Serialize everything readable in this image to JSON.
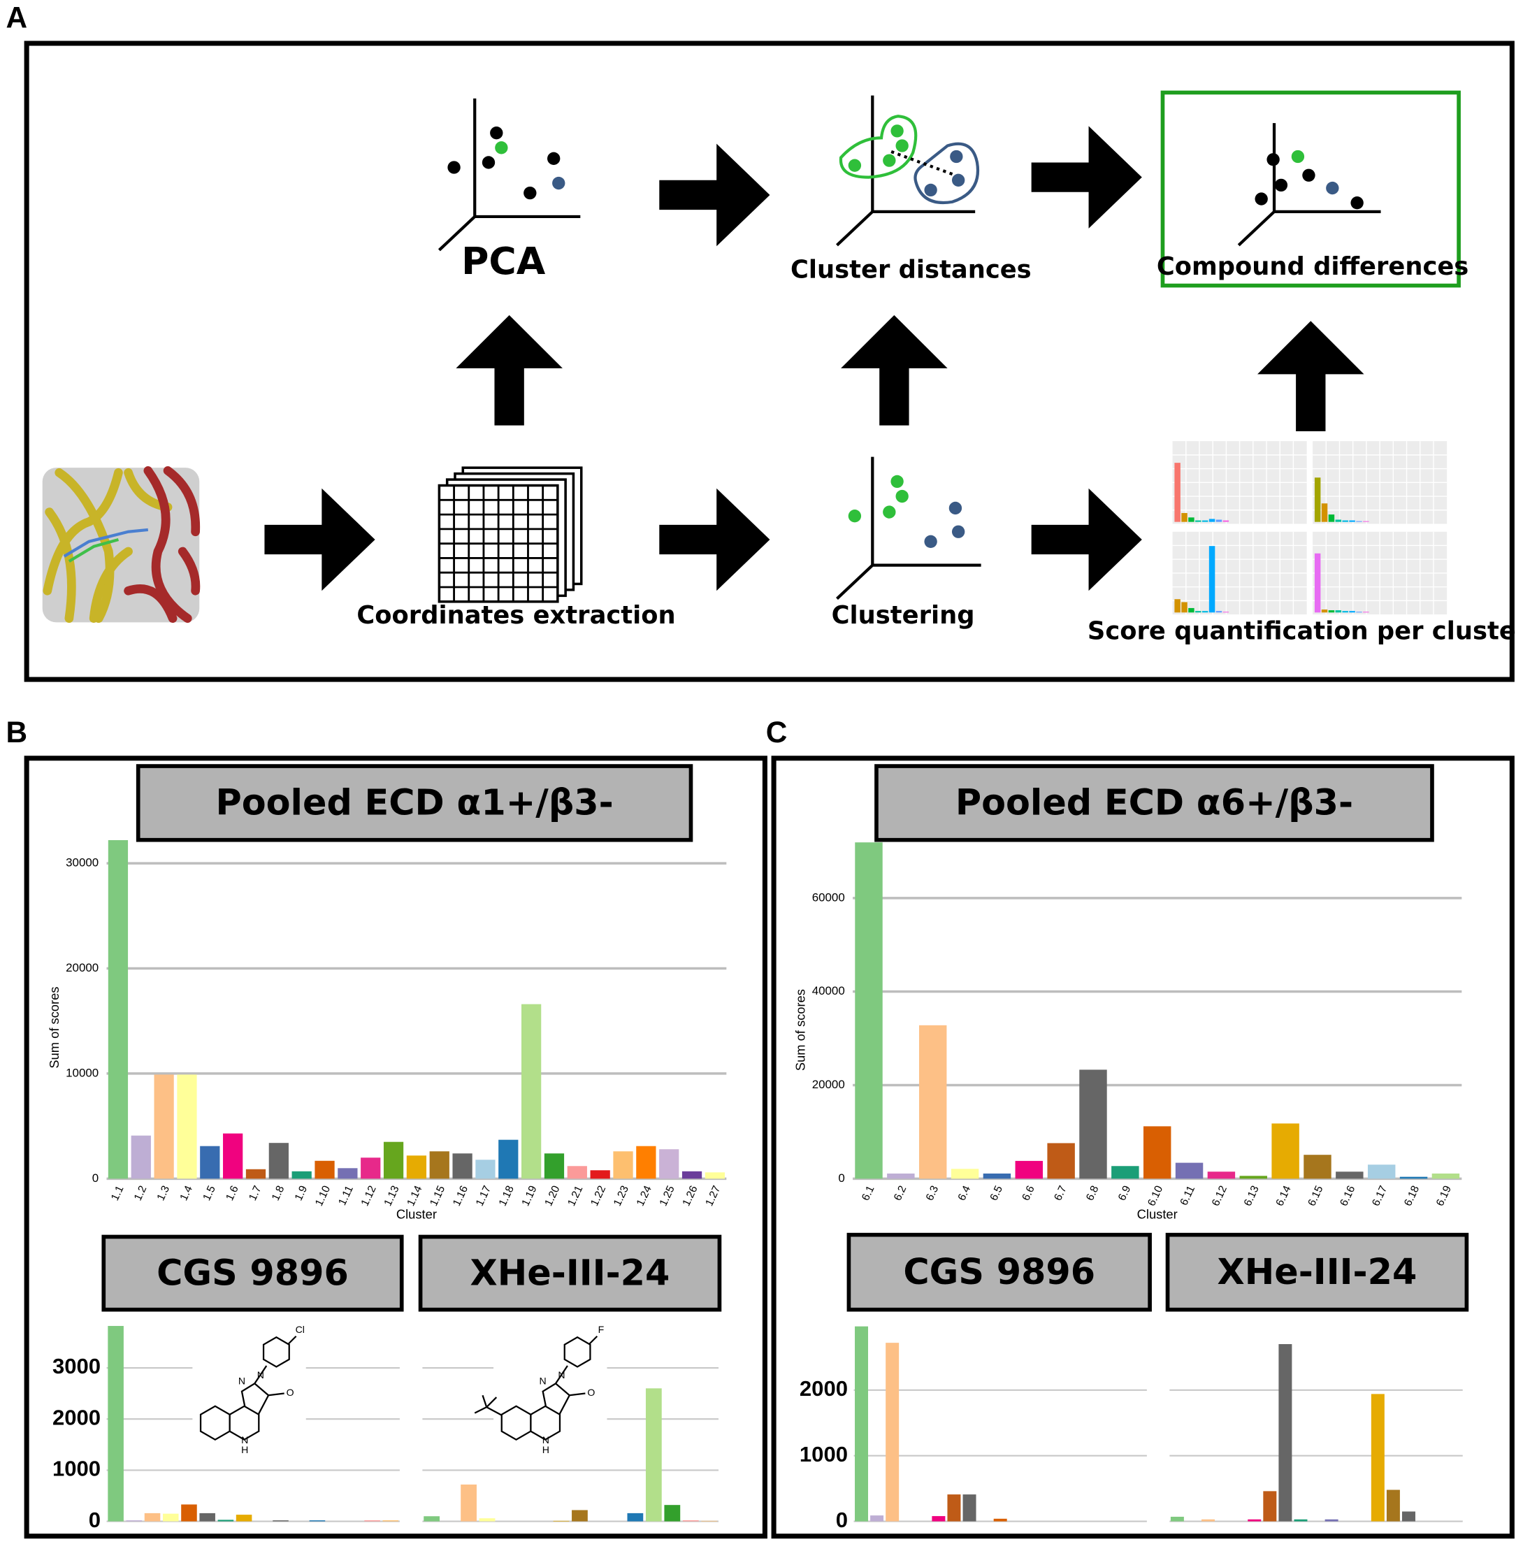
{
  "panel_labels": [
    "A",
    "B",
    "C"
  ],
  "panel_a": {
    "pca": "PCA",
    "cluster_distances": "Cluster distances",
    "compound_differences": "Compound differences",
    "coordinates_extraction": "Coordinates extraction",
    "clustering": "Clustering",
    "score_quantification": "Score quantification per cluster"
  },
  "chart_data": [
    {
      "type": "bar",
      "title": "Pooled ECD α1+/β3-",
      "xlabel": "Cluster",
      "ylabel": "Sum of scores",
      "categories": [
        "1.1",
        "1.2",
        "1.3",
        "1.4",
        "1.5",
        "1.6",
        "1.7",
        "1.8",
        "1.9",
        "1.10",
        "1.11",
        "1.12",
        "1.13",
        "1.14",
        "1.15",
        "1.16",
        "1.17",
        "1.18",
        "1.19",
        "1.20",
        "1.21",
        "1.22",
        "1.23",
        "1.24",
        "1.25",
        "1.26",
        "1.27"
      ],
      "values": [
        32200,
        4100,
        9900,
        9900,
        3100,
        4300,
        900,
        3400,
        700,
        1700,
        1000,
        2000,
        3500,
        2200,
        2600,
        2400,
        1800,
        3700,
        16600,
        2400,
        1200,
        800,
        2600,
        3100,
        2800,
        700,
        600
      ],
      "colors": [
        "#7fc97f",
        "#beaed4",
        "#fdc086",
        "#ffff99",
        "#386cb0",
        "#f0027f",
        "#bf5b17",
        "#666666",
        "#1b9e77",
        "#d95f02",
        "#7570b3",
        "#e7298a",
        "#66a61e",
        "#e6ab02",
        "#a6761d",
        "#666666",
        "#a6cee3",
        "#1f78b4",
        "#b2df8a",
        "#33a02c",
        "#fb9a99",
        "#e31a1c",
        "#fdbf6f",
        "#ff7f00",
        "#cab2d6",
        "#6a3d9a",
        "#ffff99"
      ],
      "ylim": [
        0,
        32500
      ],
      "yticks": [
        0,
        10000,
        20000,
        30000
      ],
      "grid": true
    },
    {
      "type": "bar",
      "title": "CGS 9896",
      "annotations": [
        "Cl",
        "N",
        "N",
        "O",
        "N",
        "H"
      ],
      "categories": [
        null,
        null,
        null,
        null,
        null,
        null,
        null,
        null,
        null,
        null,
        null,
        null,
        null,
        null,
        null,
        null
      ],
      "values": [
        3820,
        20,
        160,
        150,
        330,
        160,
        30,
        130,
        0,
        20,
        0,
        20,
        0,
        0,
        20,
        20
      ],
      "colors": [
        "#7fc97f",
        "#beaed4",
        "#fdc086",
        "#ffff99",
        "#d95f02",
        "#666666",
        "#1b9e77",
        "#e6ab02",
        "#a6761d",
        "#666666",
        "#a6cee3",
        "#1f78b4",
        "#b2df8a",
        "#33a02c",
        "#fb9a99",
        "#fdbf6f"
      ],
      "ylim": [
        0,
        3850
      ],
      "yticks": [
        0,
        1000,
        2000,
        3000
      ],
      "grid": true
    },
    {
      "type": "bar",
      "title": "XHe-III-24",
      "annotations": [
        "F",
        "N",
        "N",
        "O",
        "N",
        "H"
      ],
      "categories": [
        null,
        null,
        null,
        null,
        null,
        null,
        null,
        null,
        null,
        null,
        null,
        null,
        null,
        null,
        null,
        null
      ],
      "values": [
        100,
        0,
        720,
        60,
        0,
        0,
        0,
        10,
        220,
        0,
        0,
        160,
        2600,
        320,
        20,
        10
      ],
      "colors": [
        "#7fc97f",
        "#beaed4",
        "#fdc086",
        "#ffff99",
        "#d95f02",
        "#666666",
        "#1b9e77",
        "#e6ab02",
        "#a6761d",
        "#666666",
        "#a6cee3",
        "#1f78b4",
        "#b2df8a",
        "#33a02c",
        "#fb9a99",
        "#fdbf6f"
      ],
      "ylim": [
        0,
        3850
      ],
      "yticks": [
        0,
        1000,
        2000,
        3000
      ],
      "tick_labels": false,
      "grid": true
    },
    {
      "type": "bar",
      "title": "Pooled ECD α6+/β3-",
      "xlabel": "Cluster",
      "ylabel": "Sum of scores",
      "categories": [
        "6.1",
        "6.2",
        "6.3",
        "6.4",
        "6.5",
        "6.6",
        "6.7",
        "6.8",
        "6.9",
        "6.10",
        "6.11",
        "6.12",
        "6.13",
        "6.14",
        "6.15",
        "6.16",
        "6.17",
        "6.18",
        "6.19"
      ],
      "values": [
        71900,
        1100,
        32800,
        2100,
        1100,
        3800,
        7600,
        23300,
        2700,
        11200,
        3400,
        1500,
        600,
        11800,
        5100,
        1500,
        3000,
        400,
        1100
      ],
      "colors": [
        "#7fc97f",
        "#beaed4",
        "#fdc086",
        "#ffff99",
        "#386cb0",
        "#f0027f",
        "#bf5b17",
        "#666666",
        "#1b9e77",
        "#d95f02",
        "#7570b3",
        "#e7298a",
        "#66a61e",
        "#e6ab02",
        "#a6761d",
        "#666666",
        "#a6cee3",
        "#1f78b4",
        "#b2df8a"
      ],
      "ylim": [
        0,
        72000
      ],
      "yticks": [
        0,
        20000,
        40000,
        60000
      ],
      "grid": true
    },
    {
      "type": "bar",
      "title": "CGS 9896",
      "categories": [
        null,
        null,
        null,
        null,
        null,
        null,
        null,
        null,
        null,
        null,
        null,
        null,
        null,
        null,
        null,
        null,
        null,
        null,
        null
      ],
      "values": [
        2970,
        90,
        2720,
        0,
        0,
        80,
        410,
        410,
        0,
        40,
        0,
        0,
        0,
        0,
        0,
        0,
        0,
        0,
        0
      ],
      "colors": [
        "#7fc97f",
        "#beaed4",
        "#fdc086",
        "#ffff99",
        "#386cb0",
        "#f0027f",
        "#bf5b17",
        "#666666",
        "#1b9e77",
        "#d95f02",
        "#7570b3",
        "#e7298a",
        "#66a61e",
        "#e6ab02",
        "#a6761d",
        "#666666",
        "#a6cee3",
        "#1f78b4",
        "#b2df8a"
      ],
      "ylim": [
        0,
        3000
      ],
      "yticks": [
        0,
        1000,
        2000
      ],
      "grid": true
    },
    {
      "type": "bar",
      "title": "XHe-III-24",
      "categories": [
        null,
        null,
        null,
        null,
        null,
        null,
        null,
        null,
        null,
        null,
        null,
        null,
        null,
        null,
        null,
        null,
        null,
        null,
        null
      ],
      "values": [
        70,
        0,
        30,
        0,
        0,
        30,
        460,
        2700,
        30,
        0,
        30,
        0,
        0,
        1940,
        480,
        150,
        0,
        0,
        0
      ],
      "colors": [
        "#7fc97f",
        "#beaed4",
        "#fdc086",
        "#ffff99",
        "#386cb0",
        "#f0027f",
        "#bf5b17",
        "#666666",
        "#1b9e77",
        "#d95f02",
        "#7570b3",
        "#e7298a",
        "#66a61e",
        "#e6ab02",
        "#a6761d",
        "#666666",
        "#a6cee3",
        "#1f78b4",
        "#b2df8a"
      ],
      "ylim": [
        0,
        3000
      ],
      "yticks": [
        0,
        1000,
        2000
      ],
      "tick_labels": false,
      "grid": true
    }
  ]
}
